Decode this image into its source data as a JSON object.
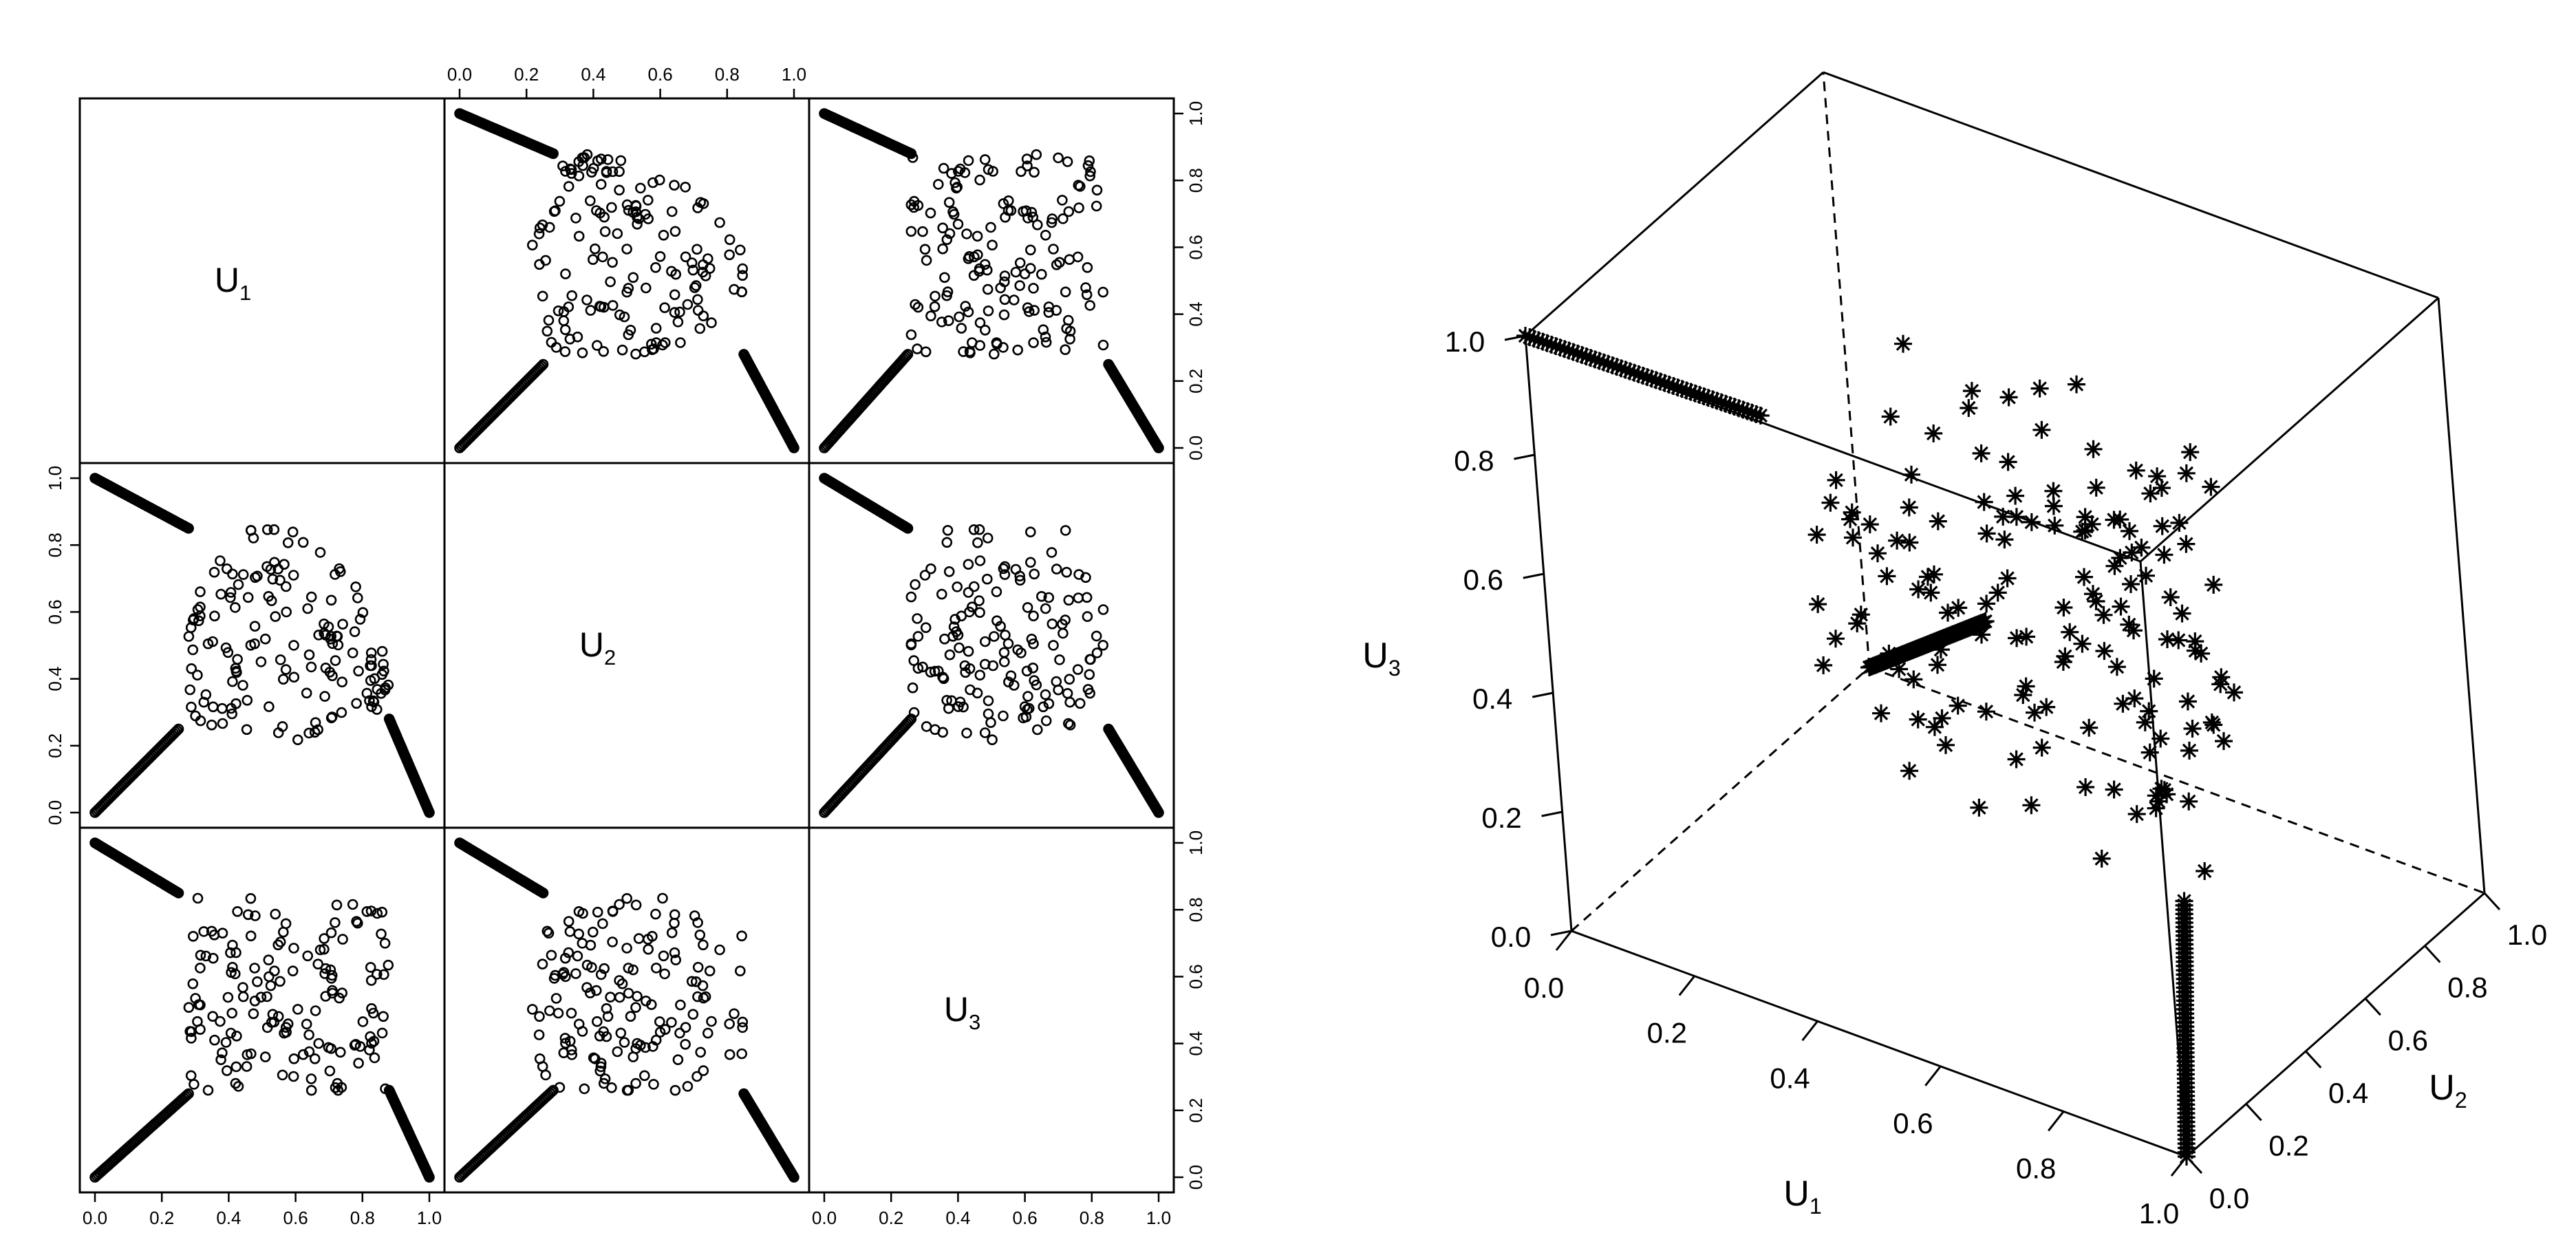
{
  "chart_data": [
    {
      "type": "scatter",
      "kind": "pairs-matrix",
      "variables": [
        {
          "label_base": "U",
          "label_sub": "1"
        },
        {
          "label_base": "U",
          "label_sub": "2"
        },
        {
          "label_base": "U",
          "label_sub": "3"
        }
      ],
      "tick_labels": [
        "0.0",
        "0.2",
        "0.4",
        "0.6",
        "0.8",
        "1.0"
      ],
      "xlim": [
        0,
        1
      ],
      "ylim": [
        0,
        1
      ],
      "marker": "open-circle",
      "grid": false,
      "description_of_data": "pairwise scatter of U1, U2, U3; dense diagonal arms near (0,1)->(0.28,0.85), (0,0)->(0.25,0.25), (0.88,0.28)->(1,0), plus scattered cloud in between"
    },
    {
      "type": "scatter",
      "kind": "3d-scatter",
      "marker": "asterisk",
      "axes": {
        "x": {
          "label_base": "U",
          "label_sub": "1",
          "range": [
            0,
            1
          ]
        },
        "y": {
          "label_base": "U",
          "label_sub": "2",
          "range": [
            0,
            1
          ]
        },
        "z": {
          "label_base": "U",
          "label_sub": "3",
          "range": [
            0,
            1
          ]
        }
      },
      "tick_labels": [
        "0.0",
        "0.2",
        "0.4",
        "0.6",
        "0.8",
        "1.0"
      ],
      "box": true,
      "grid": false
    }
  ]
}
